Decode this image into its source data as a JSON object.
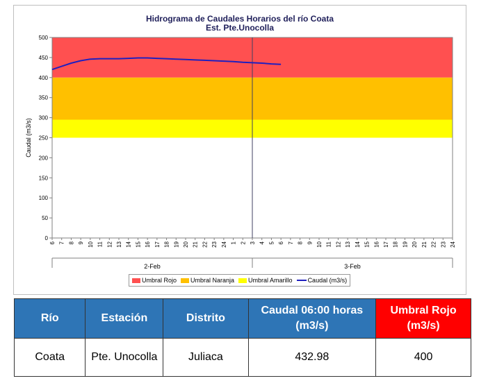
{
  "chart": {
    "title_line1": "Hidrograma de Caudales Horarios del río Coata",
    "title_line2": "Est. Pte.Unocolla"
  },
  "chart_data": {
    "type": "line",
    "title": "Hidrograma de Caudales Horarios del río Coata",
    "subtitle": "Est. Pte.Unocolla",
    "ylabel": "Caudal  (m3/s)",
    "ylim": [
      0,
      500
    ],
    "yticks": [
      0,
      50,
      100,
      150,
      200,
      250,
      300,
      350,
      400,
      450,
      500
    ],
    "x_hour_labels": [
      "6",
      "7",
      "8",
      "9",
      "10",
      "11",
      "12",
      "13",
      "14",
      "15",
      "16",
      "17",
      "18",
      "19",
      "20",
      "21",
      "22",
      "23",
      "24",
      "1",
      "2",
      "3",
      "4",
      "5",
      "6",
      "7",
      "8",
      "9",
      "10",
      "11",
      "12",
      "13",
      "14",
      "15",
      "16",
      "17",
      "18",
      "19",
      "20",
      "21",
      "22",
      "23",
      "24"
    ],
    "day_labels": [
      "2-Feb",
      "3-Feb"
    ],
    "bands": [
      {
        "name": "Umbral Rojo",
        "from": 400,
        "to": 500,
        "color": "#ff5050"
      },
      {
        "name": "Umbral Naranja",
        "from": 295,
        "to": 400,
        "color": "#ffc000"
      },
      {
        "name": "Umbral Amarillo",
        "from": 250,
        "to": 295,
        "color": "#ffff00"
      }
    ],
    "series": [
      {
        "name": "Caudal (m3/s)",
        "color": "#1f1fbf",
        "hour_index": [
          0,
          1,
          2,
          3,
          4,
          5,
          6,
          7,
          8,
          9,
          10,
          11,
          12,
          13,
          14,
          15,
          16,
          17,
          18,
          19,
          20,
          21,
          22,
          23,
          24
        ],
        "values": [
          420,
          428,
          436,
          442,
          446,
          447,
          447,
          447,
          448,
          449,
          449,
          448,
          447,
          446,
          445,
          444,
          443,
          442,
          441,
          440,
          438,
          437,
          436,
          434,
          433
        ]
      }
    ],
    "grid": false,
    "legend_position": "bottom"
  },
  "legend": [
    {
      "label": "Umbral Rojo",
      "color": "#ff5050",
      "kind": "box"
    },
    {
      "label": "Umbral Naranja",
      "color": "#ffc000",
      "kind": "box"
    },
    {
      "label": "Umbral Amarillo",
      "color": "#ffff00",
      "kind": "box"
    },
    {
      "label": "Caudal (m3/s)",
      "color": "#1f1fbf",
      "kind": "line"
    }
  ],
  "table": {
    "headers": [
      {
        "label": "Río",
        "color": "#2e75b6"
      },
      {
        "label": "Estación",
        "color": "#2e75b6"
      },
      {
        "label": "Distrito",
        "color": "#2e75b6"
      },
      {
        "label": "Caudal 06:00 horas (m3/s)",
        "color": "#2e75b6"
      },
      {
        "label": "Umbral Rojo (m3/s)",
        "color": "#ff0000"
      }
    ],
    "row": [
      "Coata",
      "Pte. Unocolla",
      "Juliaca",
      "432.98",
      "400"
    ]
  }
}
